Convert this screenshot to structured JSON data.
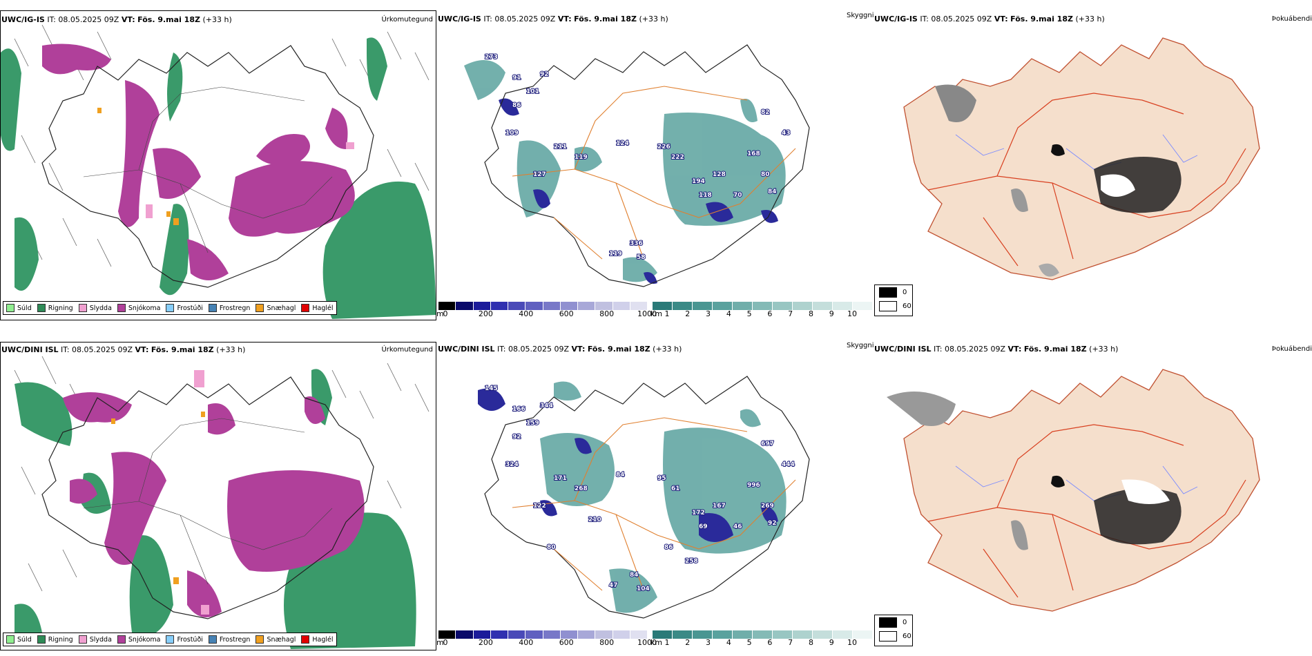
{
  "rows": [
    {
      "model": "UWC/IG-IS",
      "it_prefix": "IT:",
      "it_value": "08.05.2025 09Z",
      "vt_prefix": "VT:",
      "vt_value": "Fös. 9.mai 18Z",
      "lead": "(+33 h)",
      "precip_title": "Úrkomutegund",
      "cloud_title": "Skyggni",
      "fog_title": "Þokuábendi",
      "cloud_labels": [
        "273",
        "91",
        "92",
        "101",
        "86",
        "109",
        "211",
        "119",
        "127",
        "124",
        "226",
        "222",
        "168",
        "194",
        "128",
        "80",
        "118",
        "70",
        "84",
        "336",
        "119",
        "58",
        "82",
        "43"
      ]
    },
    {
      "model": "UWC/DINI ISL",
      "it_prefix": "IT:",
      "it_value": "08.05.2025 09Z",
      "vt_prefix": "VT:",
      "vt_value": "Fös. 9.mai 18Z",
      "lead": "(+33 h)",
      "precip_title": "Úrkomutegund",
      "cloud_title": "Skyggni",
      "fog_title": "Þokuábendi",
      "cloud_labels": [
        "145",
        "166",
        "344",
        "159",
        "92",
        "324",
        "171",
        "268",
        "122",
        "84",
        "95",
        "61",
        "996",
        "172",
        "167",
        "269",
        "69",
        "46",
        "92",
        "84",
        "47",
        "104",
        "697",
        "444",
        "210",
        "80",
        "86",
        "258"
      ]
    }
  ],
  "precip_legend": [
    {
      "label": "Súld",
      "color": "#90ee90"
    },
    {
      "label": "Rigning",
      "color": "#2e8b57"
    },
    {
      "label": "Slydda",
      "color": "#f0a0d0"
    },
    {
      "label": "Snjókoma",
      "color": "#b0409a"
    },
    {
      "label": "Frostúði",
      "color": "#87cefa"
    },
    {
      "label": "Frostregn",
      "color": "#4682b4"
    },
    {
      "label": "Snæhagl",
      "color": "#f0a020"
    },
    {
      "label": "Haglél",
      "color": "#e00000"
    }
  ],
  "cloudbase_bar": {
    "unit": "m",
    "ticks": [
      "0",
      "200",
      "400",
      "600",
      "800",
      "1000"
    ],
    "colors": [
      "#000000",
      "#0a0a6a",
      "#1b1b9a",
      "#3030b0",
      "#4a4ab8",
      "#6060c0",
      "#7878c8",
      "#9090d0",
      "#a8a8d8",
      "#c0c0e0",
      "#d0d0ea",
      "#e0e0f0"
    ]
  },
  "visibility_bar": {
    "unit": "km",
    "ticks": [
      "1",
      "2",
      "3",
      "4",
      "5",
      "6",
      "7",
      "8",
      "9",
      "10"
    ],
    "colors": [
      "#2a7a78",
      "#3a8a86",
      "#4a9692",
      "#5aa29e",
      "#70aeaa",
      "#84bab6",
      "#98c6c2",
      "#aed2ce",
      "#c4dedb",
      "#d8eae8",
      "#ecf5f4"
    ]
  },
  "fog_legend": {
    "values": [
      "0",
      "60"
    ]
  }
}
